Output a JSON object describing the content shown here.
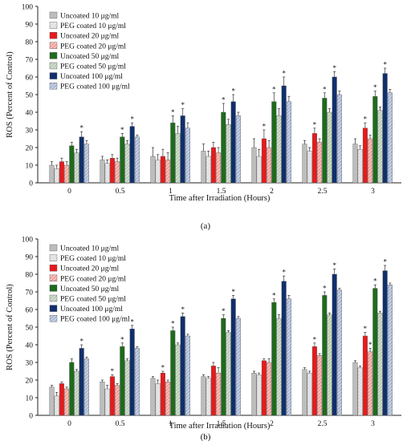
{
  "chart_data": [
    {
      "type": "bar",
      "caption": "(a)",
      "xlabel": "Time after Irradiation (Hours)",
      "ylabel": "ROS (Percent of Control)",
      "ylim": [
        0,
        100
      ],
      "yticks": [
        0,
        10,
        20,
        30,
        40,
        50,
        60,
        70,
        80,
        90,
        100
      ],
      "grid": false,
      "legend_position": "top-left",
      "categories": [
        "0",
        "0.5",
        "1",
        "1.5",
        "2",
        "2.5",
        "3"
      ],
      "series": [
        {
          "name": "Uncoated  10 μg/ml",
          "color": "#bdbdbd",
          "pattern": false,
          "values": [
            10,
            13,
            15,
            18,
            20,
            22,
            22
          ],
          "errors": [
            2,
            2,
            5,
            4,
            5,
            2,
            3
          ],
          "stars": [
            false,
            false,
            false,
            false,
            false,
            false,
            false
          ]
        },
        {
          "name": "PEG coated 10 μg/ml",
          "color": "#dedede",
          "pattern": true,
          "values": [
            8,
            11,
            13,
            15,
            15,
            18,
            19
          ],
          "errors": [
            2,
            2,
            3,
            3,
            4,
            2,
            2
          ],
          "stars": [
            false,
            false,
            false,
            false,
            false,
            false,
            false
          ]
        },
        {
          "name": "Uncoated  20 μg/ml",
          "color": "#e8191b",
          "pattern": false,
          "values": [
            12,
            14,
            15,
            20,
            25,
            28,
            31
          ],
          "errors": [
            2,
            2,
            4,
            3,
            5,
            3,
            3
          ],
          "stars": [
            false,
            false,
            false,
            false,
            true,
            true,
            true
          ]
        },
        {
          "name": "PEG coated 20 μg/ml",
          "color": "#f3a09a",
          "pattern": true,
          "values": [
            10,
            12,
            13,
            17,
            20,
            23,
            25
          ],
          "errors": [
            2,
            2,
            4,
            3,
            4,
            2,
            2
          ],
          "stars": [
            false,
            false,
            false,
            false,
            false,
            false,
            false
          ]
        },
        {
          "name": "Uncoated  50 μg/ml",
          "color": "#1d6b1c",
          "pattern": false,
          "values": [
            21,
            26,
            34,
            40,
            46,
            48,
            49
          ],
          "errors": [
            2,
            2,
            4,
            5,
            5,
            3,
            3
          ],
          "stars": [
            false,
            true,
            true,
            true,
            true,
            true,
            true
          ]
        },
        {
          "name": "PEG coated 50 μg/ml",
          "color": "#b8cdb4",
          "pattern": true,
          "values": [
            17,
            22,
            28,
            33,
            38,
            40,
            41
          ],
          "errors": [
            2,
            2,
            4,
            3,
            4,
            2,
            2
          ],
          "stars": [
            false,
            false,
            false,
            false,
            false,
            false,
            false
          ]
        },
        {
          "name": "Uncoated  100 μg/ml",
          "color": "#0f2f6d",
          "pattern": false,
          "values": [
            26,
            32,
            38,
            46,
            55,
            60,
            62
          ],
          "errors": [
            3,
            2,
            4,
            4,
            5,
            3,
            3
          ],
          "stars": [
            true,
            true,
            true,
            true,
            true,
            true,
            true
          ]
        },
        {
          "name": "PEG coated 100 μg/ml",
          "color": "#a9b9d6",
          "pattern": true,
          "values": [
            22,
            26,
            31,
            38,
            46,
            50,
            51
          ],
          "errors": [
            2,
            1,
            3,
            2,
            3,
            2,
            2
          ],
          "stars": [
            false,
            false,
            false,
            false,
            false,
            false,
            false
          ]
        }
      ]
    },
    {
      "type": "bar",
      "caption": "(b)",
      "xlabel": "Time after Irradiation (Hours)",
      "ylabel": "ROS (Percent of Control)",
      "ylim": [
        0,
        100
      ],
      "yticks": [
        0,
        10,
        20,
        30,
        40,
        50,
        60,
        70,
        80,
        90,
        100
      ],
      "grid": false,
      "legend_position": "top-left",
      "categories": [
        "0",
        "0.5",
        "1",
        "1.5",
        "2",
        "2.5",
        "3"
      ],
      "series": [
        {
          "name": "Uncoated  10 μg/ml",
          "color": "#bdbdbd",
          "pattern": false,
          "values": [
            16,
            19,
            21,
            22,
            24,
            26,
            30
          ],
          "errors": [
            1,
            1,
            1,
            1,
            1,
            1,
            1
          ],
          "stars": [
            false,
            false,
            false,
            false,
            false,
            false,
            false
          ]
        },
        {
          "name": "PEG coated 10 μg/ml",
          "color": "#dedede",
          "pattern": true,
          "values": [
            11,
            15,
            18,
            21,
            23,
            24,
            27
          ],
          "errors": [
            2,
            2,
            2,
            1,
            1,
            1,
            1
          ],
          "stars": [
            false,
            false,
            false,
            false,
            false,
            false,
            false
          ]
        },
        {
          "name": "Uncoated  20 μg/ml",
          "color": "#e8191b",
          "pattern": false,
          "values": [
            18,
            22,
            24,
            28,
            31,
            39,
            45
          ],
          "errors": [
            1,
            1,
            1,
            2,
            1,
            2,
            2
          ],
          "stars": [
            false,
            true,
            true,
            false,
            false,
            true,
            true
          ]
        },
        {
          "name": "PEG coated 20 μg/ml",
          "color": "#f3a09a",
          "pattern": true,
          "values": [
            15,
            17,
            19,
            24,
            30,
            34,
            36
          ],
          "errors": [
            1,
            1,
            1,
            3,
            2,
            1,
            2
          ],
          "stars": [
            false,
            false,
            false,
            false,
            false,
            false,
            true
          ]
        },
        {
          "name": "Uncoated  50 μg/ml",
          "color": "#1d6b1c",
          "pattern": false,
          "values": [
            30,
            39,
            48,
            55,
            64,
            68,
            72
          ],
          "errors": [
            2,
            2,
            2,
            2,
            2,
            2,
            2
          ],
          "stars": [
            false,
            true,
            true,
            true,
            true,
            true,
            true
          ]
        },
        {
          "name": "PEG coated 50 μg/ml",
          "color": "#b8cdb4",
          "pattern": true,
          "values": [
            25,
            31,
            40,
            47,
            55,
            57,
            58
          ],
          "errors": [
            1,
            1,
            1,
            1,
            2,
            1,
            1
          ],
          "stars": [
            false,
            false,
            false,
            false,
            false,
            false,
            false
          ]
        },
        {
          "name": "Uncoated  100 μg/ml",
          "color": "#0f2f6d",
          "pattern": false,
          "values": [
            38,
            49,
            56,
            66,
            76,
            80,
            82
          ],
          "errors": [
            2,
            2,
            2,
            2,
            3,
            3,
            3
          ],
          "stars": [
            true,
            true,
            true,
            true,
            true,
            true,
            true
          ]
        },
        {
          "name": "PEG coated 100 μg/ml",
          "color": "#a9b9d6",
          "pattern": true,
          "values": [
            32,
            38,
            45,
            55,
            66,
            71,
            74
          ],
          "errors": [
            1,
            1,
            1,
            1,
            2,
            1,
            1
          ],
          "stars": [
            false,
            false,
            false,
            false,
            false,
            false,
            false
          ]
        }
      ]
    }
  ]
}
